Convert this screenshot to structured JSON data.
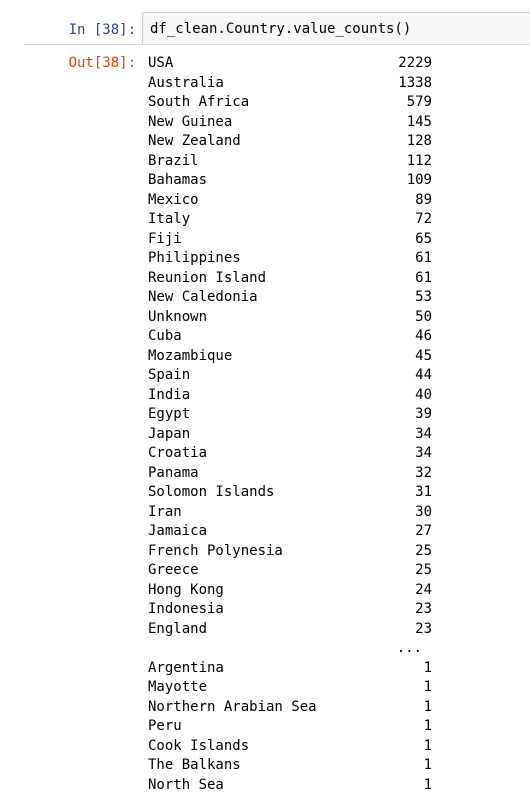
{
  "cells": {
    "input_prompt": "In [38]:",
    "input_code": "df_clean.Country.value_counts()",
    "output_prompt": "Out[38]:"
  },
  "output": {
    "rows_top": [
      {
        "label": "USA",
        "count": "2229"
      },
      {
        "label": "Australia",
        "count": "1338"
      },
      {
        "label": "South Africa",
        "count": "579"
      },
      {
        "label": "New Guinea",
        "count": "145"
      },
      {
        "label": "New Zealand",
        "count": "128"
      },
      {
        "label": "Brazil",
        "count": "112"
      },
      {
        "label": "Bahamas",
        "count": "109"
      },
      {
        "label": "Mexico",
        "count": "89"
      },
      {
        "label": "Italy",
        "count": "72"
      },
      {
        "label": "Fiji",
        "count": "65"
      },
      {
        "label": "Philippines",
        "count": "61"
      },
      {
        "label": "Reunion Island",
        "count": "61"
      },
      {
        "label": "New Caledonia",
        "count": "53"
      },
      {
        "label": "Unknown",
        "count": "50"
      },
      {
        "label": "Cuba",
        "count": "46"
      },
      {
        "label": "Mozambique",
        "count": "45"
      },
      {
        "label": "Spain",
        "count": "44"
      },
      {
        "label": "India",
        "count": "40"
      },
      {
        "label": "Egypt",
        "count": "39"
      },
      {
        "label": "Japan",
        "count": "34"
      },
      {
        "label": "Croatia",
        "count": "34"
      },
      {
        "label": "Panama",
        "count": "32"
      },
      {
        "label": "Solomon Islands",
        "count": "31"
      },
      {
        "label": "Iran",
        "count": "30"
      },
      {
        "label": "Jamaica",
        "count": "27"
      },
      {
        "label": "French Polynesia",
        "count": "25"
      },
      {
        "label": "Greece",
        "count": "25"
      },
      {
        "label": "Hong Kong",
        "count": "24"
      },
      {
        "label": "Indonesia",
        "count": "23"
      },
      {
        "label": "England",
        "count": "23"
      }
    ],
    "ellipsis": "...",
    "rows_bottom": [
      {
        "label": "Argentina",
        "count": "1"
      },
      {
        "label": "Mayotte",
        "count": "1"
      },
      {
        "label": "Northern Arabian Sea",
        "count": "1"
      },
      {
        "label": "Peru",
        "count": "1"
      },
      {
        "label": "Cook Islands",
        "count": "1"
      },
      {
        "label": "The Balkans",
        "count": "1"
      },
      {
        "label": "North Sea",
        "count": "1"
      }
    ]
  },
  "colors": {
    "input_prompt": "#303f9f",
    "output_prompt": "#d84315",
    "input_bg": "#f7f7f7",
    "input_border": "#cfcfcf"
  }
}
